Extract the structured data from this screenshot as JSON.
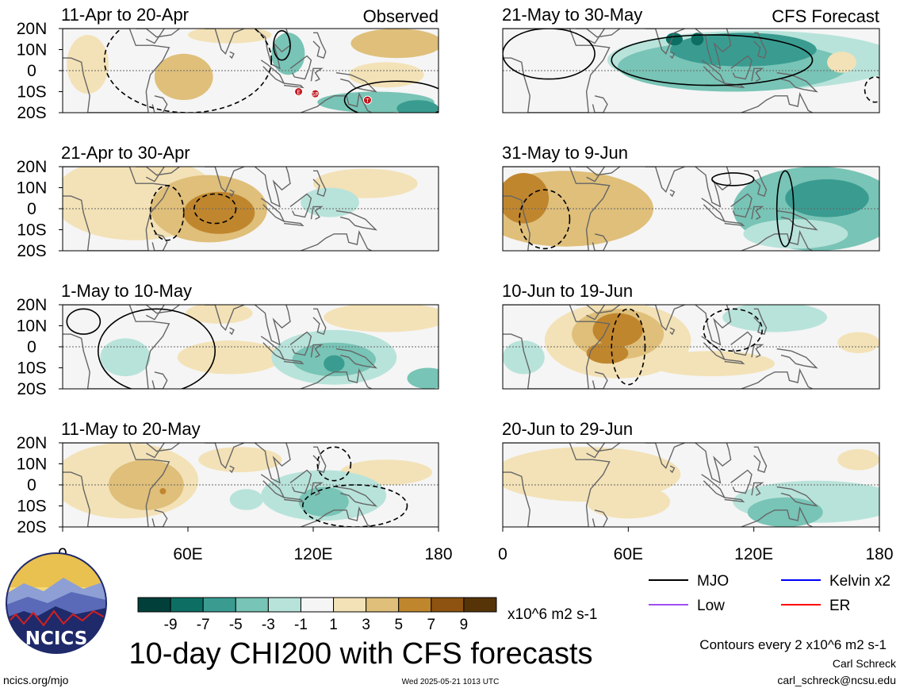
{
  "header": {
    "left_column_label": "Observed",
    "right_column_label": "CFS Forecast"
  },
  "chart_data": {
    "type": "heatmap",
    "title": "10-day CHI200 with CFS forecasts",
    "variable": "CHI200",
    "units": "x10^6 m2 s-1",
    "lat_ticks": [
      "20N",
      "10N",
      "0",
      "10S",
      "20S"
    ],
    "lon_ticks": [
      "0",
      "60E",
      "120E",
      "180"
    ],
    "lat_range": [
      -20,
      20
    ],
    "lon_range": [
      0,
      180
    ],
    "panels": [
      {
        "title": "11-Apr to 20-Apr",
        "source": "observed",
        "anoms": [
          {
            "lon": 58,
            "lat": -3,
            "rx": 14,
            "ry": 11,
            "value": 3
          },
          {
            "lon": 12,
            "lat": 3,
            "rx": 10,
            "ry": 14,
            "value": 1
          },
          {
            "lon": 80,
            "lat": 17,
            "rx": 20,
            "ry": 4,
            "value": 1
          },
          {
            "lon": 160,
            "lat": 13,
            "rx": 22,
            "ry": 7,
            "value": 3
          },
          {
            "lon": 155,
            "lat": -2,
            "rx": 18,
            "ry": 6,
            "value": 1
          },
          {
            "lon": 108,
            "lat": 8,
            "rx": 8,
            "ry": 10,
            "value": -3
          },
          {
            "lon": 150,
            "lat": -15,
            "rx": 28,
            "ry": 5,
            "value": -3
          },
          {
            "lon": 170,
            "lat": -18,
            "rx": 10,
            "ry": 4,
            "value": -5
          }
        ],
        "contours": [
          {
            "lon": 105,
            "lat": 12,
            "rx": 4,
            "ry": 7,
            "style": "solid"
          },
          {
            "lon": 160,
            "lat": -14,
            "rx": 25,
            "ry": 9,
            "style": "solid"
          },
          {
            "lon": 60,
            "lat": 5,
            "rx": 40,
            "ry": 25,
            "style": "dashed"
          }
        ],
        "markers": [
          {
            "lon": 113,
            "lat": -10,
            "label": "E"
          },
          {
            "lon": 121,
            "lat": -11,
            "label": "SR"
          },
          {
            "lon": 146,
            "lat": -14,
            "label": "T"
          }
        ]
      },
      {
        "title": "21-May to 30-May",
        "source": "forecast",
        "anoms": [
          {
            "lon": 120,
            "lat": 5,
            "rx": 70,
            "ry": 14,
            "value": -1
          },
          {
            "lon": 110,
            "lat": 2,
            "rx": 55,
            "ry": 12,
            "value": -3
          },
          {
            "lon": 115,
            "lat": 10,
            "rx": 35,
            "ry": 8,
            "value": -5
          },
          {
            "lon": 82,
            "lat": 15,
            "rx": 4,
            "ry": 3,
            "value": -7
          },
          {
            "lon": 93,
            "lat": 15,
            "rx": 3,
            "ry": 3,
            "value": -7
          },
          {
            "lon": 162,
            "lat": 4,
            "rx": 7,
            "ry": 5,
            "value": 1
          }
        ],
        "contours": [
          {
            "lon": 100,
            "lat": 5,
            "rx": 48,
            "ry": 12,
            "style": "solid"
          },
          {
            "lon": 22,
            "lat": 8,
            "rx": 22,
            "ry": 12,
            "style": "solid"
          },
          {
            "lon": 178,
            "lat": -9,
            "rx": 5,
            "ry": 6,
            "style": "dashed"
          }
        ],
        "markers": []
      },
      {
        "title": "21-Apr to 30-Apr",
        "source": "observed",
        "anoms": [
          {
            "lon": 35,
            "lat": 5,
            "rx": 40,
            "ry": 20,
            "value": 1
          },
          {
            "lon": 70,
            "lat": 0,
            "rx": 28,
            "ry": 16,
            "value": 3
          },
          {
            "lon": 75,
            "lat": -2,
            "rx": 17,
            "ry": 10,
            "value": 5
          },
          {
            "lon": 145,
            "lat": 12,
            "rx": 25,
            "ry": 7,
            "value": 1
          },
          {
            "lon": 128,
            "lat": 3,
            "rx": 14,
            "ry": 7,
            "value": -1
          }
        ],
        "contours": [
          {
            "lon": 73,
            "lat": 0,
            "rx": 10,
            "ry": 7,
            "style": "dashed"
          },
          {
            "lon": 50,
            "lat": -2,
            "rx": 8,
            "ry": 13,
            "style": "dashed"
          }
        ],
        "markers": []
      },
      {
        "title": "31-May to 9-Jun",
        "source": "forecast",
        "anoms": [
          {
            "lon": 30,
            "lat": 0,
            "rx": 42,
            "ry": 18,
            "value": 3
          },
          {
            "lon": 10,
            "lat": 5,
            "rx": 12,
            "ry": 12,
            "value": 5
          },
          {
            "lon": 50,
            "lat": 5,
            "rx": 16,
            "ry": 9,
            "value": 3
          },
          {
            "lon": 150,
            "lat": 0,
            "rx": 40,
            "ry": 20,
            "value": -3
          },
          {
            "lon": 155,
            "lat": 5,
            "rx": 20,
            "ry": 9,
            "value": -5
          },
          {
            "lon": 140,
            "lat": -12,
            "rx": 25,
            "ry": 7,
            "value": -1
          }
        ],
        "contours": [
          {
            "lon": 20,
            "lat": -5,
            "rx": 12,
            "ry": 14,
            "style": "dashed"
          },
          {
            "lon": 110,
            "lat": 14,
            "rx": 10,
            "ry": 3,
            "style": "solid"
          },
          {
            "lon": 135,
            "lat": 0,
            "rx": 4,
            "ry": 18,
            "style": "solid"
          }
        ],
        "markers": []
      },
      {
        "title": "1-May to 10-May",
        "source": "observed",
        "anoms": [
          {
            "lon": 75,
            "lat": 16,
            "rx": 16,
            "ry": 5,
            "value": 1
          },
          {
            "lon": 155,
            "lat": 14,
            "rx": 30,
            "ry": 7,
            "value": 1
          },
          {
            "lon": 80,
            "lat": -5,
            "rx": 25,
            "ry": 8,
            "value": 1
          },
          {
            "lon": 130,
            "lat": -5,
            "rx": 30,
            "ry": 13,
            "value": -1
          },
          {
            "lon": 130,
            "lat": -6,
            "rx": 20,
            "ry": 8,
            "value": -3
          },
          {
            "lon": 130,
            "lat": -8,
            "rx": 5,
            "ry": 4,
            "value": -5
          },
          {
            "lon": 30,
            "lat": -5,
            "rx": 12,
            "ry": 9,
            "value": -1
          },
          {
            "lon": 175,
            "lat": -15,
            "rx": 10,
            "ry": 5,
            "value": -3
          }
        ],
        "contours": [
          {
            "lon": 45,
            "lat": -2,
            "rx": 28,
            "ry": 20,
            "style": "solid"
          },
          {
            "lon": 10,
            "lat": 12,
            "rx": 8,
            "ry": 6,
            "style": "solid"
          }
        ],
        "markers": []
      },
      {
        "title": "10-Jun to 19-Jun",
        "source": "forecast",
        "anoms": [
          {
            "lon": 55,
            "lat": 3,
            "rx": 35,
            "ry": 18,
            "value": 1
          },
          {
            "lon": 55,
            "lat": 6,
            "rx": 22,
            "ry": 12,
            "value": 3
          },
          {
            "lon": 55,
            "lat": 8,
            "rx": 12,
            "ry": 8,
            "value": 5
          },
          {
            "lon": 50,
            "lat": -3,
            "rx": 10,
            "ry": 5,
            "value": 5
          },
          {
            "lon": 100,
            "lat": -8,
            "rx": 30,
            "ry": 6,
            "value": 1
          },
          {
            "lon": 130,
            "lat": 14,
            "rx": 25,
            "ry": 7,
            "value": -1
          },
          {
            "lon": 10,
            "lat": -5,
            "rx": 10,
            "ry": 8,
            "value": -1
          },
          {
            "lon": 170,
            "lat": 2,
            "rx": 10,
            "ry": 5,
            "value": 1
          }
        ],
        "contours": [
          {
            "lon": 60,
            "lat": 0,
            "rx": 8,
            "ry": 18,
            "style": "dashed"
          },
          {
            "lon": 110,
            "lat": 8,
            "rx": 14,
            "ry": 10,
            "style": "dashed"
          }
        ],
        "markers": []
      },
      {
        "title": "11-May to 20-May",
        "source": "observed",
        "anoms": [
          {
            "lon": 30,
            "lat": 2,
            "rx": 35,
            "ry": 18,
            "value": 1
          },
          {
            "lon": 40,
            "lat": 0,
            "rx": 18,
            "ry": 12,
            "value": 3
          },
          {
            "lon": 48,
            "lat": -3,
            "rx": 1.5,
            "ry": 1.5,
            "value": 5
          },
          {
            "lon": 85,
            "lat": 12,
            "rx": 20,
            "ry": 6,
            "value": 1
          },
          {
            "lon": 155,
            "lat": 6,
            "rx": 22,
            "ry": 6,
            "value": 1
          },
          {
            "lon": 125,
            "lat": -5,
            "rx": 30,
            "ry": 12,
            "value": -1
          },
          {
            "lon": 125,
            "lat": -8,
            "rx": 12,
            "ry": 7,
            "value": -3
          },
          {
            "lon": 88,
            "lat": -7,
            "rx": 8,
            "ry": 5,
            "value": -1
          }
        ],
        "contours": [
          {
            "lon": 140,
            "lat": -10,
            "rx": 25,
            "ry": 10,
            "style": "dashed"
          },
          {
            "lon": 130,
            "lat": 10,
            "rx": 8,
            "ry": 8,
            "style": "dashed"
          }
        ],
        "markers": []
      },
      {
        "title": "20-Jun to 29-Jun",
        "source": "forecast",
        "anoms": [
          {
            "lon": 40,
            "lat": 5,
            "rx": 45,
            "ry": 13,
            "value": 1
          },
          {
            "lon": 60,
            "lat": -8,
            "rx": 20,
            "ry": 8,
            "value": 1
          },
          {
            "lon": 150,
            "lat": -8,
            "rx": 40,
            "ry": 10,
            "value": -1
          },
          {
            "lon": 135,
            "lat": -13,
            "rx": 18,
            "ry": 7,
            "value": -3
          },
          {
            "lon": 170,
            "lat": 12,
            "rx": 10,
            "ry": 5,
            "value": 1
          }
        ],
        "contours": [],
        "markers": []
      }
    ],
    "colorbar": {
      "labels": [
        "-9",
        "-7",
        "-5",
        "-3",
        "-1",
        "1",
        "3",
        "5",
        "7",
        "9"
      ],
      "colors": [
        "#01403a",
        "#0d6e63",
        "#3a9c91",
        "#78c4b6",
        "#b8e3da",
        "#f5f5f5",
        "#f3e2b7",
        "#dfbf7a",
        "#c0862e",
        "#8e5211",
        "#573408"
      ]
    },
    "contour_note": "Contours every 2 x10^6 m2 s-1",
    "legend": [
      {
        "label": "MJO",
        "color": "#000000"
      },
      {
        "label": "Kelvin x2",
        "color": "#0000ff"
      },
      {
        "label": "Low",
        "color": "#a050f0"
      },
      {
        "label": "ER",
        "color": "#ff0000"
      }
    ]
  },
  "footer": {
    "author": "Carl Schreck",
    "email": "carl_schreck@ncsu.edu",
    "site": "ncics.org/mjo",
    "timestamp": "Wed 2025-05-21 1013 UTC",
    "logo_text": "NCICS"
  }
}
